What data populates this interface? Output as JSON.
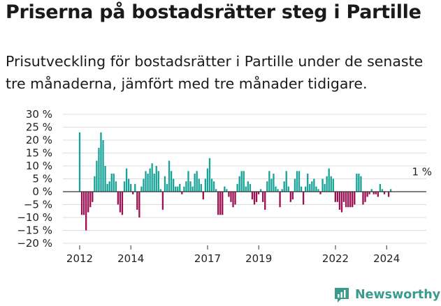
{
  "title": "Priserna på bostadsrätter steg i Partille",
  "subtitle": "Prisutveckling för bostadsrätter i Partille under de senaste tre månaderna, jämfört med tre månader tidigare.",
  "brand": {
    "name": "Newsworthy",
    "icon": "newsworthy-logo-icon"
  },
  "colors": {
    "positive": "#17a398",
    "negative": "#9c0f52",
    "grid": "#dddddd",
    "axis": "#333333",
    "brand": "#3a9b8c"
  },
  "chart_data": {
    "type": "bar",
    "title": "Priserna på bostadsrätter steg i Partille",
    "ylim": [
      -20,
      30
    ],
    "yticks": [
      30,
      25,
      20,
      15,
      10,
      5,
      0,
      -5,
      -10,
      -15,
      -20
    ],
    "ytick_labels": [
      "30 %",
      "25 %",
      "20 %",
      "15 %",
      "10 %",
      "5 %",
      "0 %",
      "−5 %",
      "−10 %",
      "−15 %",
      "−20 %"
    ],
    "xticks": [
      2012,
      2014,
      2017,
      2019,
      2022,
      2024
    ],
    "xtick_labels": [
      "2012",
      "2014",
      "2017",
      "2019",
      "2022",
      "2024"
    ],
    "x_start": 2012.0,
    "x_step": 0.0833,
    "grid": true,
    "annotation": {
      "text": "1 %",
      "x": 2025.0,
      "y": 1
    },
    "values": [
      23,
      -9,
      -9,
      -15,
      -8,
      -6,
      -4,
      6,
      12,
      17,
      23,
      20,
      10,
      3,
      4,
      7,
      7,
      4,
      -5,
      -8,
      -9,
      4,
      9,
      5,
      3,
      -1,
      3,
      -7,
      -10,
      2,
      5,
      8,
      7,
      9,
      11,
      7,
      10,
      8,
      1,
      -7,
      6,
      3,
      12,
      8,
      5,
      2,
      2,
      3,
      -1,
      2,
      4,
      8,
      4,
      2,
      7,
      8,
      5,
      3,
      -3,
      5,
      9,
      13,
      5,
      4,
      1,
      -9,
      -9,
      -9,
      2,
      1,
      -2,
      -4,
      -6,
      -5,
      3,
      6,
      8,
      8,
      2,
      4,
      3,
      -3,
      -5,
      -4,
      -1,
      1,
      -4,
      -7,
      4,
      8,
      5,
      7,
      2,
      1,
      -6,
      1,
      4,
      8,
      2,
      -4,
      -3,
      5,
      8,
      8,
      2,
      -5,
      2,
      7,
      3,
      4,
      5,
      2,
      1,
      -1,
      5,
      3,
      6,
      9,
      6,
      5,
      -4,
      -4,
      -7,
      -8,
      -4,
      -6,
      -6,
      -6,
      -6,
      -5,
      7,
      7,
      6,
      -5,
      -4,
      -2,
      -1,
      1,
      -1,
      -1,
      -2,
      3,
      1,
      -1,
      0,
      -2,
      1
    ]
  }
}
